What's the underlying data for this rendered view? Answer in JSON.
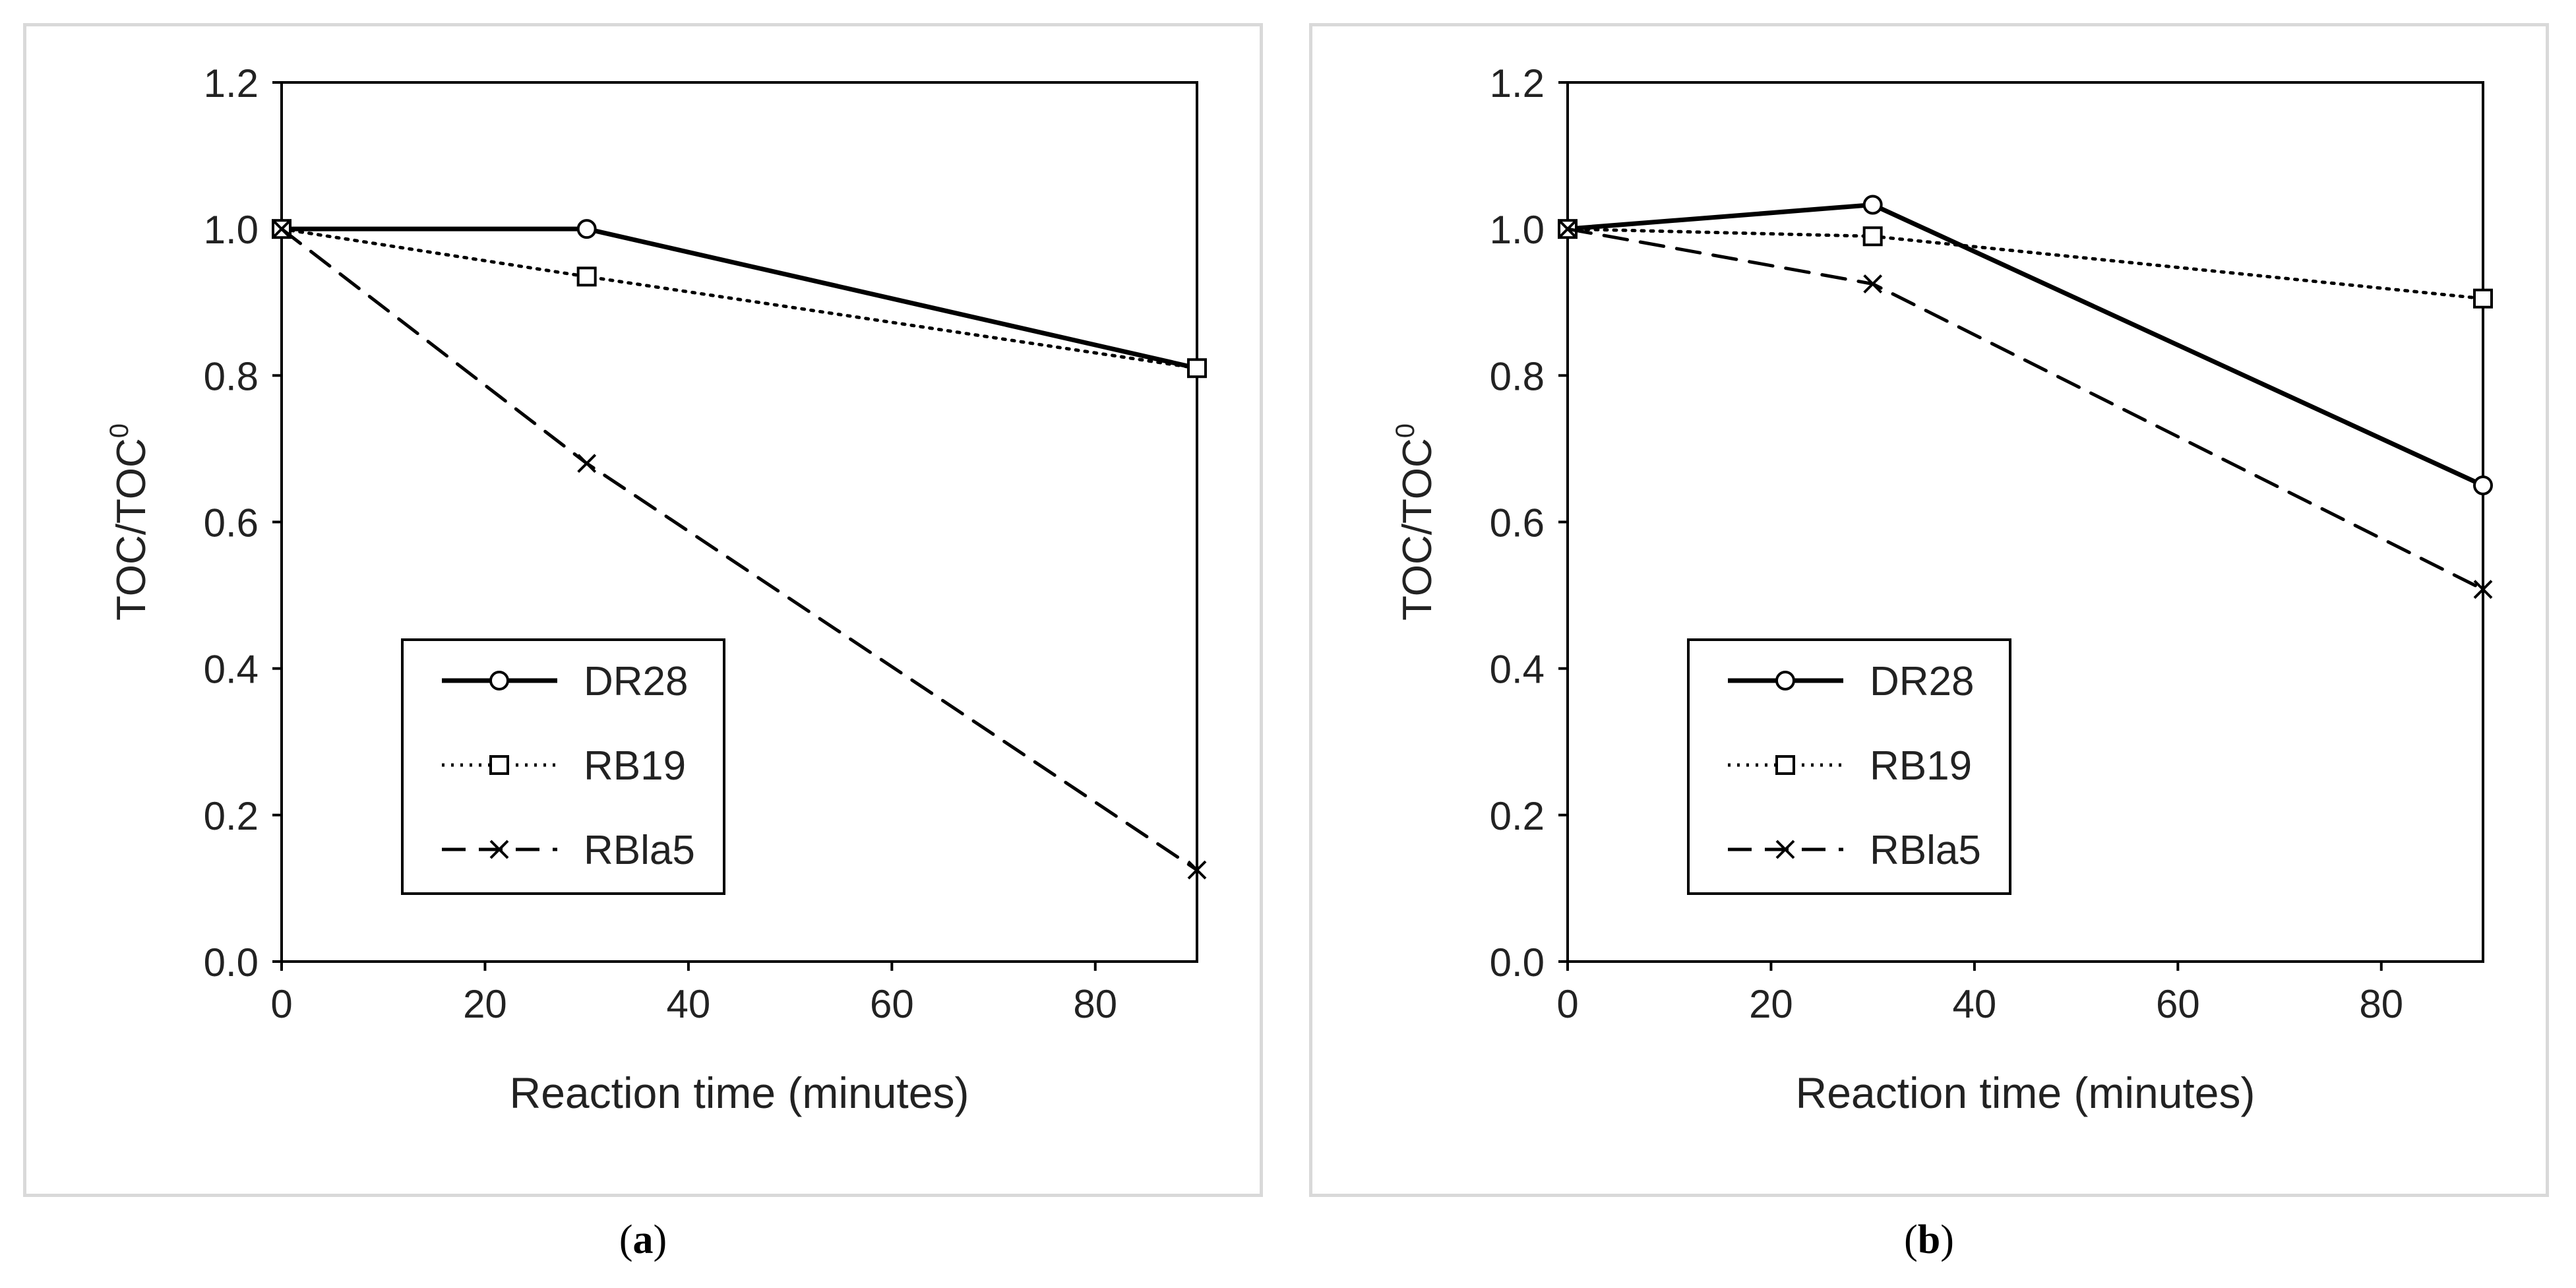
{
  "chart_data": [
    {
      "type": "line",
      "panel_label": "a",
      "xlabel": "Reaction time (minutes)",
      "ylabel": "TOC/TOC",
      "ylabel_superscript": "0",
      "xlim": [
        0,
        90
      ],
      "ylim": [
        0,
        1.2
      ],
      "xticks": [
        "0",
        "20",
        "40",
        "60",
        "80"
      ],
      "yticks": [
        "0.0",
        "0.2",
        "0.4",
        "0.6",
        "0.8",
        "1.0",
        "1.2"
      ],
      "x": [
        0,
        30,
        90
      ],
      "series": [
        {
          "name": "DR28",
          "values": [
            1.0,
            1.0,
            0.81
          ],
          "marker": "circle",
          "line": "solid"
        },
        {
          "name": "RB19",
          "values": [
            1.0,
            0.935,
            0.81
          ],
          "marker": "square",
          "line": "dotted"
        },
        {
          "name": "RBla5",
          "values": [
            1.0,
            0.68,
            0.125
          ],
          "marker": "x",
          "line": "dashed"
        }
      ],
      "legend": "lower-left"
    },
    {
      "type": "line",
      "panel_label": "b",
      "xlabel": "Reaction time (minutes)",
      "ylabel": "TOC/TOC",
      "ylabel_superscript": "0",
      "xlim": [
        0,
        90
      ],
      "ylim": [
        0,
        1.2
      ],
      "xticks": [
        "0",
        "20",
        "40",
        "60",
        "80"
      ],
      "yticks": [
        "0.0",
        "0.2",
        "0.4",
        "0.6",
        "0.8",
        "1.0",
        "1.2"
      ],
      "x": [
        0,
        30,
        90
      ],
      "series": [
        {
          "name": "DR28",
          "values": [
            1.0,
            1.033,
            0.65
          ],
          "marker": "circle",
          "line": "solid"
        },
        {
          "name": "RB19",
          "values": [
            1.0,
            0.99,
            0.905
          ],
          "marker": "square",
          "line": "dotted"
        },
        {
          "name": "RBla5",
          "values": [
            1.0,
            0.925,
            0.508
          ],
          "marker": "x",
          "line": "dashed"
        }
      ],
      "legend": "lower-left"
    }
  ],
  "captions": {
    "a": "a",
    "b": "b"
  }
}
